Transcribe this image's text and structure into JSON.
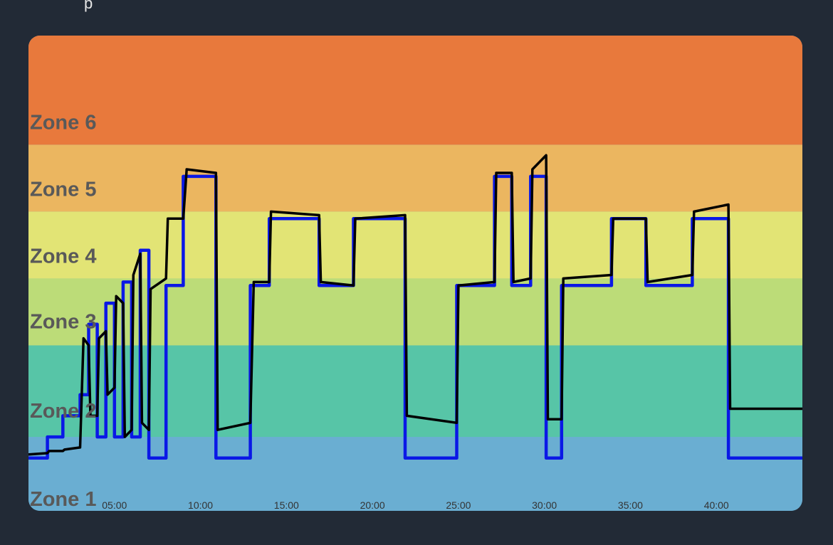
{
  "header": {
    "partial_text": "p"
  },
  "chart_data": {
    "type": "line",
    "title": "",
    "xlabel": "",
    "ylabel": "",
    "x_unit": "minutes",
    "xlim": [
      0,
      45
    ],
    "ylim": [
      0.15,
      6.9
    ],
    "x_ticks": [
      {
        "value": 5,
        "label": "05:00"
      },
      {
        "value": 10,
        "label": "10:00"
      },
      {
        "value": 15,
        "label": "15:00"
      },
      {
        "value": 20,
        "label": "20:00"
      },
      {
        "value": 25,
        "label": "25:00"
      },
      {
        "value": 30,
        "label": "30:00"
      },
      {
        "value": 35,
        "label": "35:00"
      },
      {
        "value": 40,
        "label": "40:00"
      }
    ],
    "zones": [
      {
        "label": "Zone 1",
        "from": 0.15,
        "to": 1.2,
        "color": "#6aaed2"
      },
      {
        "label": "Zone 2",
        "from": 1.2,
        "to": 2.5,
        "color": "#57c5a7"
      },
      {
        "label": "Zone 3",
        "from": 2.5,
        "to": 3.45,
        "color": "#bcdc78"
      },
      {
        "label": "Zone 4",
        "from": 3.45,
        "to": 4.4,
        "color": "#e2e475"
      },
      {
        "label": "Zone 5",
        "from": 4.4,
        "to": 5.35,
        "color": "#ebb660"
      },
      {
        "label": "Zone 6",
        "from": 5.35,
        "to": 6.9,
        "color": "#e8793c"
      }
    ],
    "zone_label_positions": [
      0.3,
      1.55,
      2.82,
      3.75,
      4.7,
      5.65
    ],
    "series": [
      {
        "style": "target",
        "color": "#0a18e6",
        "x": [
          0,
          1.1,
          1.1,
          2,
          2,
          3,
          3,
          3.5,
          3.5,
          4,
          4,
          4.5,
          4.5,
          5,
          5,
          5.5,
          5.5,
          6,
          6,
          6.5,
          6.5,
          7,
          7,
          8,
          8,
          9,
          9,
          10.9,
          10.9,
          12.9,
          12.9,
          14,
          14,
          16.9,
          16.9,
          18.9,
          18.9,
          21.9,
          21.9,
          24.9,
          24.9,
          27.1,
          27.1,
          28.1,
          28.1,
          29.2,
          29.2,
          30.1,
          30.1,
          31,
          31,
          33.9,
          33.9,
          35.9,
          35.9,
          38.6,
          38.6,
          40.7,
          40.7,
          44,
          44,
          45
        ],
        "y": [
          0.9,
          0.9,
          1.2,
          1.2,
          1.5,
          1.5,
          1.8,
          1.8,
          2.8,
          2.8,
          1.2,
          1.2,
          3.1,
          3.1,
          1.2,
          1.2,
          3.4,
          3.4,
          1.2,
          1.2,
          3.85,
          3.85,
          0.9,
          0.9,
          3.35,
          3.35,
          4.9,
          4.9,
          0.9,
          0.9,
          3.35,
          3.35,
          4.3,
          4.3,
          3.35,
          3.35,
          4.3,
          4.3,
          0.9,
          0.9,
          3.35,
          3.35,
          4.9,
          4.9,
          3.35,
          3.35,
          4.9,
          4.9,
          0.9,
          0.9,
          3.35,
          3.35,
          4.3,
          4.3,
          3.35,
          3.35,
          4.3,
          4.3,
          0.9,
          0.9,
          0.9,
          0.9
        ]
      },
      {
        "style": "actual",
        "color": "#000000",
        "x": [
          0,
          1.1,
          1.2,
          2,
          2.1,
          3,
          3.2,
          3.5,
          3.6,
          4,
          4.1,
          4.5,
          4.6,
          5,
          5.1,
          5.5,
          5.6,
          6,
          6.1,
          6.5,
          6.6,
          7,
          7.1,
          8,
          8.1,
          9,
          9.2,
          10.9,
          11,
          12.9,
          13.1,
          14,
          14.1,
          16.9,
          17,
          18.9,
          19,
          21.9,
          22,
          24.9,
          25,
          27.1,
          27.2,
          28.1,
          28.2,
          29.2,
          29.3,
          30.1,
          30.2,
          31,
          31.1,
          33.9,
          34,
          35.9,
          36,
          38.6,
          38.7,
          40.7,
          40.8,
          44,
          44.1,
          45
        ],
        "y": [
          0.95,
          0.97,
          1.0,
          1.0,
          1.02,
          1.05,
          2.6,
          2.5,
          1.5,
          1.5,
          2.6,
          2.7,
          1.8,
          1.9,
          3.2,
          3.1,
          1.2,
          1.3,
          3.5,
          3.8,
          1.4,
          1.3,
          3.3,
          3.45,
          4.3,
          4.3,
          5.0,
          4.95,
          1.3,
          1.4,
          3.4,
          3.4,
          4.4,
          4.35,
          3.4,
          3.35,
          4.3,
          4.35,
          1.5,
          1.4,
          3.35,
          3.4,
          4.95,
          4.95,
          3.4,
          3.45,
          5.0,
          5.2,
          1.45,
          1.45,
          3.45,
          3.5,
          4.3,
          4.3,
          3.4,
          3.5,
          4.4,
          4.5,
          1.6,
          1.6,
          1.6,
          1.6
        ]
      }
    ],
    "grid": false,
    "legend": "none"
  }
}
